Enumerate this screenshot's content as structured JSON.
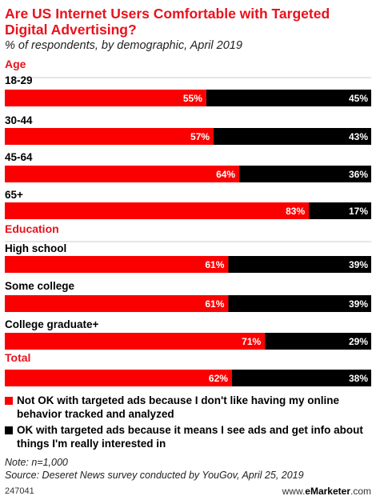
{
  "title": "Are US Internet Users Comfortable with Targeted Digital Advertising?",
  "subtitle": "% of respondents, by demographic, April 2019",
  "colors": {
    "not_ok": "#fb0000",
    "ok": "#000000",
    "section": "#e8121c",
    "divider": "#cccccc"
  },
  "chart_data": {
    "type": "bar",
    "stacked": true,
    "orientation": "horizontal",
    "title": "Are US Internet Users Comfortable with Targeted Digital Advertising?",
    "subtitle": "% of respondents, by demographic, April 2019",
    "xlim": [
      0,
      100
    ],
    "groups": [
      {
        "name": "Age",
        "categories": [
          "18-29",
          "30-44",
          "45-64",
          "65+"
        ]
      },
      {
        "name": "Education",
        "categories": [
          "High school",
          "Some college",
          "College graduate+"
        ]
      },
      {
        "name": "Total",
        "categories": [
          ""
        ]
      }
    ],
    "categories": [
      "18-29",
      "30-44",
      "45-64",
      "65+",
      "High school",
      "Some college",
      "College graduate+",
      "Total"
    ],
    "series": [
      {
        "name": "Not OK with targeted ads because I don't like having my online behavior tracked and analyzed",
        "values": [
          55,
          57,
          64,
          83,
          61,
          61,
          71,
          62
        ]
      },
      {
        "name": "OK with targeted ads because it means I see ads and get info about things I'm really interested in",
        "values": [
          45,
          43,
          36,
          17,
          39,
          39,
          29,
          38
        ]
      }
    ],
    "data_labels": [
      [
        "55%",
        "57%",
        "64%",
        "83%",
        "61%",
        "61%",
        "71%",
        "62%"
      ],
      [
        "45%",
        "43%",
        "36%",
        "17%",
        "39%",
        "39%",
        "29%",
        "38%"
      ]
    ],
    "legend": "bottom"
  },
  "legend_items": [
    "Not OK with targeted ads because I don't like having my online behavior tracked and analyzed",
    "OK with targeted ads because it means I see ads and get info about things I'm really interested in"
  ],
  "note": "Note: n=1,000",
  "source": "Source: Deseret News survey conducted by YouGov, April 25, 2019",
  "chart_id": "247041",
  "brand": {
    "prefix": "www.",
    "name": "eMarketer",
    "suffix": ".com"
  }
}
